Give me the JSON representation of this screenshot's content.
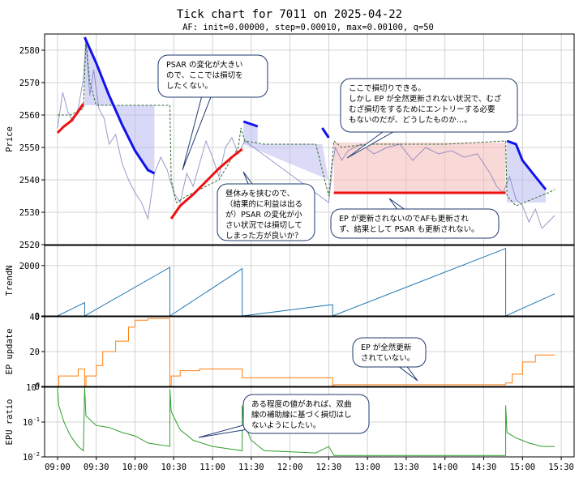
{
  "title": "Tick chart for 7011 on 2025-04-22",
  "subtitle": "AF: init=0.00000, step=0.00010, max=0.00100, q=50",
  "x_ticks": [
    "09:00",
    "09:30",
    "10:00",
    "10:30",
    "11:00",
    "11:30",
    "12:00",
    "12:30",
    "13:00",
    "13:30",
    "14:00",
    "14:30",
    "15:00",
    "15:30"
  ],
  "colors": {
    "price": "#7a78b8",
    "psar_up": "#ee1111",
    "psar_down": "#1111ee",
    "ep": "#2e6b2e",
    "trend": "#1f77b4",
    "epu": "#ff7f0e",
    "ratio": "#2ca02c",
    "fill_up": "#f4b8b8",
    "fill_down": "#b8b8f0"
  },
  "chart_data": [
    {
      "panel": "price",
      "type": "line",
      "ylabel": "Price",
      "ylim": [
        2520,
        2585
      ],
      "yticks": [
        2520,
        2530,
        2540,
        2550,
        2560,
        2570,
        2580
      ],
      "xlim": [
        "08:50",
        "15:40"
      ],
      "price": [
        [
          "09:00",
          2556
        ],
        [
          "09:04",
          2567
        ],
        [
          "09:08",
          2561
        ],
        [
          "09:12",
          2558
        ],
        [
          "09:16",
          2562
        ],
        [
          "09:20",
          2571
        ],
        [
          "09:22",
          2583
        ],
        [
          "09:25",
          2566
        ],
        [
          "09:28",
          2574
        ],
        [
          "09:32",
          2562
        ],
        [
          "09:36",
          2559
        ],
        [
          "09:40",
          2551
        ],
        [
          "09:45",
          2554
        ],
        [
          "09:50",
          2545
        ],
        [
          "09:55",
          2540
        ],
        [
          "10:00",
          2536
        ],
        [
          "10:05",
          2533
        ],
        [
          "10:10",
          2528
        ],
        [
          "10:15",
          2542
        ],
        [
          "10:20",
          2547
        ],
        [
          "10:25",
          2543
        ],
        [
          "10:30",
          2536
        ],
        [
          "10:35",
          2533
        ],
        [
          "10:40",
          2542
        ],
        [
          "10:45",
          2538
        ],
        [
          "10:50",
          2545
        ],
        [
          "10:55",
          2552
        ],
        [
          "11:00",
          2547
        ],
        [
          "11:05",
          2541
        ],
        [
          "11:10",
          2550
        ],
        [
          "11:15",
          2553
        ],
        [
          "11:20",
          2548
        ],
        [
          "11:25",
          2552
        ],
        [
          "12:30",
          2533
        ],
        [
          "12:33",
          2545
        ],
        [
          "12:35",
          2550
        ],
        [
          "12:40",
          2546
        ],
        [
          "12:45",
          2549
        ],
        [
          "12:55",
          2551
        ],
        [
          "13:05",
          2548
        ],
        [
          "13:15",
          2550
        ],
        [
          "13:25",
          2551
        ],
        [
          "13:35",
          2546
        ],
        [
          "13:45",
          2550
        ],
        [
          "13:55",
          2548
        ],
        [
          "14:05",
          2549
        ],
        [
          "14:15",
          2547
        ],
        [
          "14:25",
          2548
        ],
        [
          "14:35",
          2542
        ],
        [
          "14:40",
          2538
        ],
        [
          "14:45",
          2536
        ],
        [
          "14:50",
          2541
        ],
        [
          "14:55",
          2534
        ],
        [
          "15:00",
          2532
        ],
        [
          "15:05",
          2527
        ],
        [
          "15:10",
          2531
        ],
        [
          "15:15",
          2525
        ],
        [
          "15:20",
          2527
        ],
        [
          "15:25",
          2529
        ]
      ],
      "psar_up": [
        [
          [
            "09:00",
            2554.5
          ],
          [
            "09:05",
            2556.5
          ],
          [
            "09:10",
            2558
          ],
          [
            "09:15",
            2560.5
          ],
          [
            "09:20",
            2563.5
          ]
        ],
        [
          [
            "10:28",
            2528
          ],
          [
            "10:35",
            2532
          ],
          [
            "10:45",
            2535.5
          ],
          [
            "10:55",
            2539.5
          ],
          [
            "11:05",
            2543.5
          ],
          [
            "11:15",
            2547
          ],
          [
            "11:23",
            2549.5
          ]
        ],
        [
          [
            "12:34",
            2536
          ],
          [
            "14:47",
            2536
          ]
        ]
      ],
      "psar_down": [
        [
          [
            "09:21",
            2584
          ],
          [
            "09:30",
            2576
          ],
          [
            "09:40",
            2566
          ],
          [
            "09:50",
            2557
          ],
          [
            "10:00",
            2549
          ],
          [
            "10:10",
            2543
          ],
          [
            "10:15",
            2542
          ]
        ],
        [
          [
            "11:24",
            2558
          ],
          [
            "11:35",
            2556.5
          ]
        ],
        [
          [
            "12:25",
            2556
          ],
          [
            "12:30",
            2553
          ]
        ],
        [
          [
            "14:48",
            2552
          ],
          [
            "14:55",
            2551
          ],
          [
            "15:00",
            2546
          ],
          [
            "15:10",
            2541
          ],
          [
            "15:18",
            2537
          ]
        ]
      ],
      "ep": [
        [
          "09:00",
          2560
        ],
        [
          "09:10",
          2560
        ],
        [
          "09:20",
          2562
        ],
        [
          "09:22",
          2583
        ],
        [
          "09:25",
          2570
        ],
        [
          "09:30",
          2563
        ],
        [
          "10:27",
          2563
        ],
        [
          "10:28",
          2540
        ],
        [
          "10:32",
          2533
        ],
        [
          "10:40",
          2535
        ],
        [
          "10:50",
          2537
        ],
        [
          "11:05",
          2540
        ],
        [
          "11:20",
          2550
        ],
        [
          "11:22",
          2556
        ],
        [
          "11:25",
          2552
        ],
        [
          "11:40",
          2551
        ],
        [
          "12:20",
          2551
        ],
        [
          "12:30",
          2535
        ],
        [
          "12:34",
          2552
        ],
        [
          "12:40",
          2550
        ],
        [
          "13:00",
          2551
        ],
        [
          "14:00",
          2551
        ],
        [
          "14:47",
          2552
        ],
        [
          "14:48",
          2535
        ],
        [
          "14:55",
          2532
        ],
        [
          "15:20",
          2536
        ],
        [
          "15:25",
          2537
        ]
      ]
    },
    {
      "panel": "trend",
      "type": "line",
      "ylabel": "TrendN",
      "ylim": [
        0,
        2800
      ],
      "yticks": [
        0,
        2000
      ],
      "values": [
        [
          "09:00",
          0
        ],
        [
          "09:21",
          530
        ],
        [
          "09:21",
          0
        ],
        [
          "10:27",
          1930
        ],
        [
          "10:27",
          0
        ],
        [
          "11:23",
          1880
        ],
        [
          "11:23",
          0
        ],
        [
          "12:33",
          450
        ],
        [
          "12:33",
          0
        ],
        [
          "14:47",
          2680
        ],
        [
          "14:47",
          0
        ],
        [
          "15:25",
          880
        ]
      ]
    },
    {
      "panel": "ep_update",
      "type": "step",
      "ylabel": "EP update",
      "ylim": [
        0,
        40
      ],
      "yticks": [
        0,
        20,
        40
      ],
      "values": [
        [
          "09:00",
          0
        ],
        [
          "09:01",
          6
        ],
        [
          "09:15",
          6
        ],
        [
          "09:16",
          10
        ],
        [
          "09:21",
          10
        ],
        [
          "09:21",
          0
        ],
        [
          "09:22",
          6
        ],
        [
          "09:30",
          12
        ],
        [
          "09:35",
          20
        ],
        [
          "09:45",
          26
        ],
        [
          "09:55",
          34
        ],
        [
          "10:00",
          38
        ],
        [
          "10:10",
          39
        ],
        [
          "10:27",
          39
        ],
        [
          "10:27",
          0
        ],
        [
          "10:28",
          6
        ],
        [
          "10:35",
          9
        ],
        [
          "10:50",
          10
        ],
        [
          "11:23",
          10
        ],
        [
          "11:23",
          5
        ],
        [
          "12:33",
          5
        ],
        [
          "12:33",
          0
        ],
        [
          "12:34",
          1
        ],
        [
          "14:47",
          1
        ],
        [
          "14:47",
          2
        ],
        [
          "14:52",
          7
        ],
        [
          "15:00",
          14
        ],
        [
          "15:10",
          18
        ],
        [
          "15:25",
          18
        ]
      ]
    },
    {
      "panel": "epu_ratio",
      "type": "line",
      "ylabel": "EPU ratio",
      "yscale": "log",
      "ylim": [
        0.01,
        1
      ],
      "yticks": [
        "10^-2",
        "10^-1",
        "10^0"
      ],
      "values": [
        [
          "09:00",
          1
        ],
        [
          "09:01",
          0.3
        ],
        [
          "09:05",
          0.1
        ],
        [
          "09:10",
          0.04
        ],
        [
          "09:16",
          0.02
        ],
        [
          "09:20",
          0.015
        ],
        [
          "09:21",
          1
        ],
        [
          "09:22",
          0.15
        ],
        [
          "09:30",
          0.08
        ],
        [
          "09:40",
          0.07
        ],
        [
          "09:50",
          0.05
        ],
        [
          "10:00",
          0.04
        ],
        [
          "10:10",
          0.025
        ],
        [
          "10:27",
          0.02
        ],
        [
          "10:27",
          0.9
        ],
        [
          "10:28",
          0.2
        ],
        [
          "10:35",
          0.06
        ],
        [
          "10:45",
          0.03
        ],
        [
          "11:00",
          0.02
        ],
        [
          "11:23",
          0.015
        ],
        [
          "11:23",
          0.3
        ],
        [
          "11:24",
          0.1
        ],
        [
          "11:30",
          0.03
        ],
        [
          "11:40",
          0.015
        ],
        [
          "12:20",
          0.013
        ],
        [
          "12:30",
          0.02
        ],
        [
          "12:33",
          0.013
        ],
        [
          "12:34",
          0.011
        ],
        [
          "14:47",
          0.011
        ],
        [
          "14:47",
          0.3
        ],
        [
          "14:48",
          0.05
        ],
        [
          "14:55",
          0.035
        ],
        [
          "15:05",
          0.025
        ],
        [
          "15:15",
          0.02
        ],
        [
          "15:25",
          0.02
        ]
      ]
    }
  ],
  "annotations": [
    {
      "panel": "price",
      "lines": [
        "PSAR の変化が大きい",
        "ので、ここでは損切を",
        "したくない。"
      ]
    },
    {
      "panel": "price",
      "lines": [
        "ここで損切りできる。",
        "しかし EP が全然更新されない状況で、むざ",
        "むざ損切をするためにエントリーする必要",
        "もないのだが、どうしたものか…。"
      ]
    },
    {
      "panel": "price",
      "lines": [
        "昼休みを挟むので、",
        "（結果的に利益は出る",
        "が）PSAR の変化が小",
        "さい状況では損切して",
        "しまった方が良いか？"
      ]
    },
    {
      "panel": "price",
      "lines": [
        "EP が更新されないのでAFも更新され",
        "ず、結果として PSAR も更新されない。"
      ]
    },
    {
      "panel": "ep_update",
      "lines": [
        "EP が全然更新",
        "されていない。"
      ]
    },
    {
      "panel": "epu_ratio",
      "lines": [
        "ある程度の値があれば、双曲",
        "線の補助線に基づく損切はし",
        "ないようにしたい。"
      ]
    }
  ]
}
